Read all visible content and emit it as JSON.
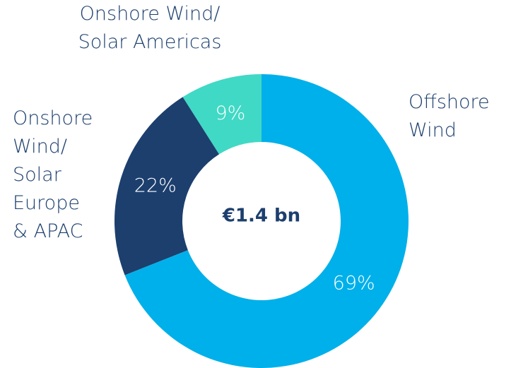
{
  "chart_data": {
    "type": "donut",
    "center_label": "€1.4 bn",
    "categories": [
      "Offshore\nWind",
      "Onshore\nWind/\nSolar\nEurope\n& APAC",
      "Onshore Wind/\nSolar Americas"
    ],
    "values": [
      69,
      22,
      9
    ],
    "value_labels": [
      "69%",
      "22%",
      "9%"
    ],
    "colors": [
      "#00b0ea",
      "#1c3f6e",
      "#40d9c5"
    ]
  }
}
